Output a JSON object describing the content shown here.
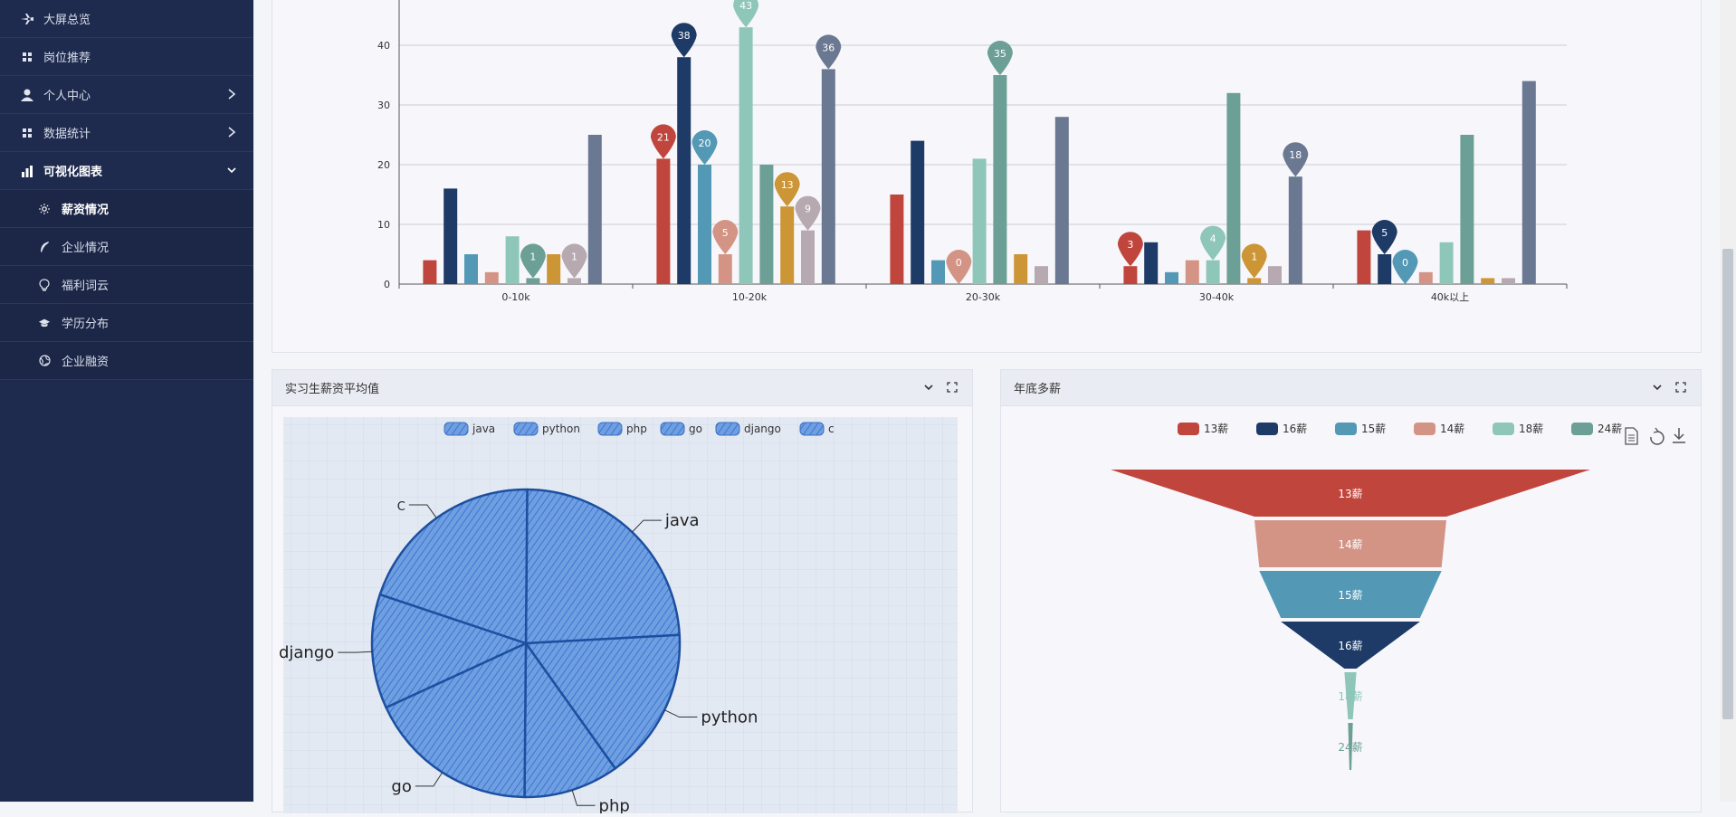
{
  "sidebar": {
    "items": [
      {
        "label": "大屏总览",
        "icon": "plane-icon"
      },
      {
        "label": "岗位推荐",
        "icon": "grid-icon"
      },
      {
        "label": "个人中心",
        "icon": "user-icon",
        "has_children": true
      },
      {
        "label": "数据统计",
        "icon": "grid-icon",
        "has_children": true
      },
      {
        "label": "可视化图表",
        "icon": "bar-chart-icon",
        "has_children": true,
        "expanded": true
      }
    ],
    "sub_items": [
      {
        "label": "薪资情况",
        "icon": "sun-icon",
        "active": true
      },
      {
        "label": "企业情况",
        "icon": "feather-icon"
      },
      {
        "label": "福利词云",
        "icon": "bulb-icon"
      },
      {
        "label": "学历分布",
        "icon": "graduation-cap-icon"
      },
      {
        "label": "企业融资",
        "icon": "globe-icon"
      }
    ]
  },
  "panels": {
    "intern": {
      "title": "实习生薪资平均值"
    },
    "bonus": {
      "title": "年底多薪"
    }
  },
  "colors": {
    "c1": "#c0463d",
    "c2": "#1e3a66",
    "c3": "#5399b5",
    "c4": "#d49485",
    "c5": "#8fc6ba",
    "c6": "#6c9f96",
    "c7": "#cc9536",
    "c8": "#b6a9b0",
    "c9": "#6b7891",
    "sidebar_bg": "#1f2b4e"
  },
  "chart_data": [
    {
      "type": "bar",
      "categories": [
        "0-10k",
        "10-20k",
        "20-30k",
        "30-40k",
        "40k以上"
      ],
      "series": [
        {
          "values": [
            4,
            21,
            15,
            3,
            9
          ]
        },
        {
          "values": [
            16,
            38,
            24,
            7,
            5
          ]
        },
        {
          "values": [
            5,
            20,
            4,
            2,
            0
          ]
        },
        {
          "values": [
            2,
            5,
            0,
            4,
            2
          ]
        },
        {
          "values": [
            8,
            43,
            21,
            4,
            7
          ]
        },
        {
          "values": [
            1,
            20,
            35,
            32,
            25
          ]
        },
        {
          "values": [
            5,
            13,
            5,
            1,
            1
          ]
        },
        {
          "values": [
            1,
            9,
            3,
            3,
            1
          ]
        },
        {
          "values": [
            25,
            36,
            28,
            18,
            34
          ]
        }
      ],
      "markers": [
        {
          "category": 0,
          "series": 5,
          "value": 1
        },
        {
          "category": 0,
          "series": 7,
          "value": 1
        },
        {
          "category": 1,
          "series": 0,
          "value": 21
        },
        {
          "category": 1,
          "series": 1,
          "value": 38
        },
        {
          "category": 1,
          "series": 2,
          "value": 20
        },
        {
          "category": 1,
          "series": 3,
          "value": 5
        },
        {
          "category": 1,
          "series": 4,
          "value": 43
        },
        {
          "category": 1,
          "series": 6,
          "value": 13
        },
        {
          "category": 1,
          "series": 7,
          "value": 9
        },
        {
          "category": 1,
          "series": 8,
          "value": 36
        },
        {
          "category": 2,
          "series": 3,
          "value": 0
        },
        {
          "category": 2,
          "series": 5,
          "value": 35
        },
        {
          "category": 3,
          "series": 0,
          "value": 3
        },
        {
          "category": 3,
          "series": 4,
          "value": 4
        },
        {
          "category": 3,
          "series": 6,
          "value": 1
        },
        {
          "category": 3,
          "series": 8,
          "value": 18
        },
        {
          "category": 4,
          "series": 1,
          "value": 5
        },
        {
          "category": 4,
          "series": 2,
          "value": 0
        }
      ],
      "y_ticks": [
        0,
        10,
        20,
        30,
        40
      ],
      "ylim": [
        0,
        48
      ]
    },
    {
      "type": "pie",
      "style": "hand-drawn sketch",
      "legend": [
        "java",
        "python",
        "php",
        "go",
        "django",
        "c"
      ],
      "slice_labels": [
        "java",
        "python",
        "php",
        "go",
        "django",
        "C"
      ],
      "values": [
        24,
        16,
        10,
        18,
        12,
        20
      ]
    },
    {
      "type": "funnel",
      "legend": [
        "13薪",
        "16薪",
        "15薪",
        "14薪",
        "18薪",
        "24薪"
      ],
      "stages": [
        {
          "label": "13薪",
          "value": 100
        },
        {
          "label": "14薪",
          "value": 40
        },
        {
          "label": "15薪",
          "value": 38
        },
        {
          "label": "16薪",
          "value": 29
        },
        {
          "label": "18薪",
          "value": 2.5
        },
        {
          "label": "24薪",
          "value": 1
        }
      ]
    }
  ]
}
